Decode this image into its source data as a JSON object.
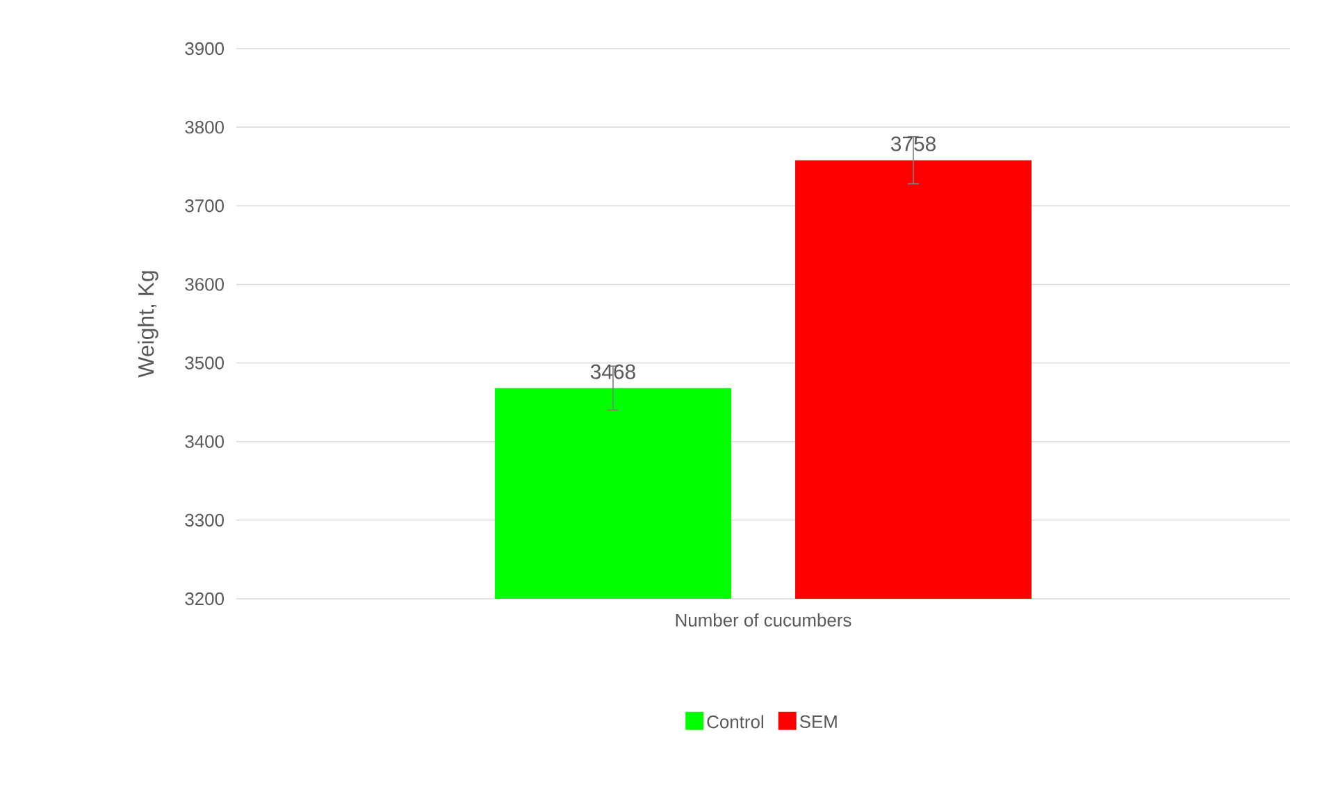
{
  "chart_data": {
    "type": "bar",
    "ylabel": "Weight, Kg",
    "categories": [
      "Number of cucumbers"
    ],
    "series": [
      {
        "name": "Control",
        "color": "#00ff00",
        "values": [
          3468
        ],
        "errors": [
          28
        ]
      },
      {
        "name": "SEM",
        "color": "#ff0000",
        "values": [
          3758
        ],
        "errors": [
          30
        ]
      }
    ],
    "ylim": [
      3200,
      3900
    ],
    "yticks": [
      3200,
      3300,
      3400,
      3500,
      3600,
      3700,
      3800,
      3900
    ],
    "grid": "y",
    "legend": "bottom",
    "data_labels": true
  }
}
